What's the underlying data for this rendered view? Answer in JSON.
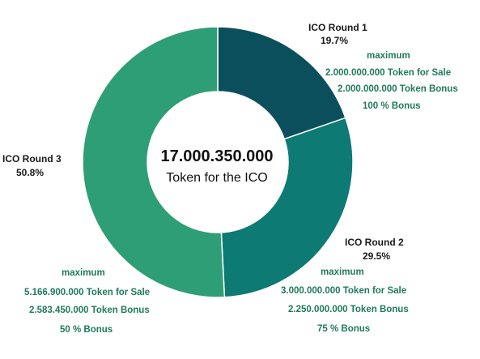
{
  "chart_data": {
    "type": "pie",
    "donut": true,
    "center": {
      "title": "17.000.350.000",
      "subtitle": "Token for the ICO"
    },
    "slices": [
      {
        "name": "ICO Round 1",
        "value": 19.7,
        "label": "19.7%",
        "color": "#0b4f5c",
        "details": [
          "maximum",
          "2.000.000.000 Token for Sale",
          "2.000.000.000 Token Bonus",
          "100 % Bonus"
        ]
      },
      {
        "name": "ICO Round 2",
        "value": 29.5,
        "label": "29.5%",
        "color": "#0d7a73",
        "details": [
          "maximum",
          "3.000.000.000 Token for Sale",
          "2.250.000.000 Token Bonus",
          "75 % Bonus"
        ]
      },
      {
        "name": "ICO Round 3",
        "value": 50.8,
        "label": "50.8%",
        "color": "#2e9e76",
        "details": [
          "maximum",
          "5.166.900.000 Token for Sale",
          "2.583.450.000 Token Bonus",
          "50 % Bonus"
        ]
      }
    ]
  }
}
